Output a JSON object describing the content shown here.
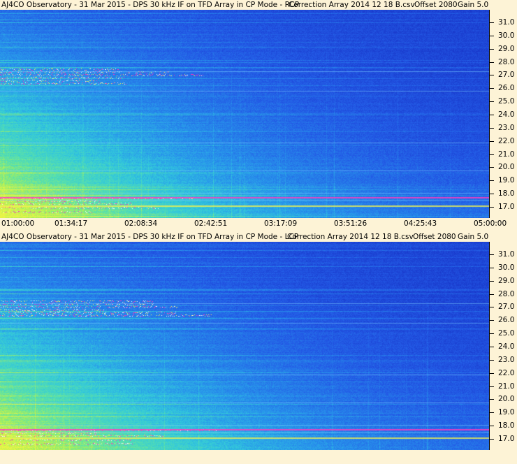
{
  "panels": [
    {
      "title_parts": {
        "main": "AJ4CO Observatory - 31 Mar 2015 - DPS 30 kHz IF on TFD Array in CP Mode - RCP",
        "correction": "Correction Array 2014 12 18 B.csv",
        "offset": "Offset 2080",
        "gain": "Gain 5.0"
      },
      "y_ticks": [
        "31.0",
        "30.0",
        "29.0",
        "28.0",
        "27.0",
        "26.0",
        "25.0",
        "24.0",
        "23.0",
        "22.0",
        "21.0",
        "20.0",
        "19.0",
        "18.0",
        "17.0"
      ]
    },
    {
      "title_parts": {
        "main": "AJ4CO Observatory - 31 Mar 2015 - DPS 30 kHz IF on TFD Array in CP Mode - LCP",
        "correction": "Correction Array 2014 12 18 B.csv",
        "offset": "Offset 2080",
        "gain": "Gain 5.0"
      },
      "y_ticks": [
        "31.0",
        "30.0",
        "29.0",
        "28.0",
        "27.0",
        "26.0",
        "25.0",
        "24.0",
        "23.0",
        "22.0",
        "21.0",
        "20.0",
        "19.0",
        "18.0",
        "17.0"
      ]
    }
  ],
  "x_ticks": [
    "01:00:00",
    "01:34:17",
    "02:08:34",
    "02:42:51",
    "03:17:09",
    "03:51:26",
    "04:25:43",
    "05:00:00"
  ],
  "colors": {
    "background": "#fdf3d6",
    "spectrogram_low": "#1a3fd8",
    "spectrogram_mid": "#2fb0e8",
    "spectrogram_high": "#c8f060",
    "interference": "#ff30c0"
  }
}
